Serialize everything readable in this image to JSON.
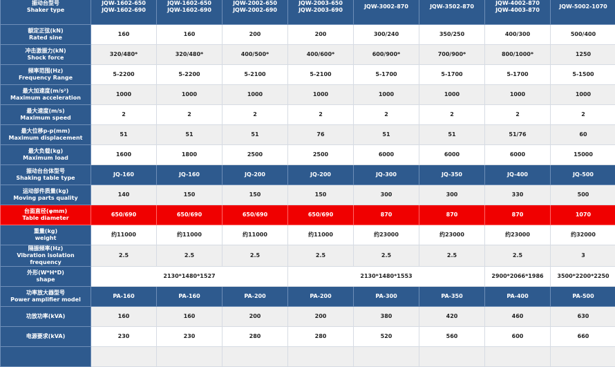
{
  "header": {
    "label_cn": "振动台型号",
    "label_en": "Shaker type",
    "models": [
      [
        "JQW-1602-650",
        "JQW-1602-690"
      ],
      [
        "JQW-1602-650",
        "JQW-1602-690"
      ],
      [
        "JQW-2002-650",
        "JQW-2002-690"
      ],
      [
        "JQW-2003-650",
        "JQW-2003-690"
      ],
      [
        "JQW-3002-870"
      ],
      [
        "JQW-3502-870"
      ],
      [
        "JQW-4002-870",
        "JQW-4003-870"
      ],
      [
        "JQW-5002-1070"
      ]
    ]
  },
  "rows": [
    {
      "cn": "额定正弦(kN)",
      "en": "Rated sine",
      "style": "white",
      "values": [
        "160",
        "160",
        "200",
        "200",
        "300/240",
        "350/250",
        "400/300",
        "500/400"
      ]
    },
    {
      "cn": "冲击激振力(kN)",
      "en": "Shock force",
      "style": "gray",
      "values": [
        "320/480*",
        "320/480*",
        "400/500*",
        "400/600*",
        "600/900*",
        "700/900*",
        "800/1000*",
        "1250"
      ]
    },
    {
      "cn": "频率范围(Hz)",
      "en": "Frequency Range",
      "style": "white",
      "values": [
        "5-2200",
        "5-2200",
        "5-2100",
        "5-2100",
        "5-1700",
        "5-1700",
        "5-1700",
        "5-1500"
      ]
    },
    {
      "cn": "最大加速度(m/s²)",
      "en": "Maximum acceleration",
      "style": "gray",
      "values": [
        "1000",
        "1000",
        "1000",
        "1000",
        "1000",
        "1000",
        "1000",
        "1000"
      ]
    },
    {
      "cn": "最大速度(m/s)",
      "en": "Maximum speed",
      "style": "white",
      "values": [
        "2",
        "2",
        "2",
        "2",
        "2",
        "2",
        "2",
        "2"
      ]
    },
    {
      "cn": "最大位移p-p(mm)",
      "en": "Maximum displacement",
      "style": "gray",
      "values": [
        "51",
        "51",
        "51",
        "76",
        "51",
        "51",
        "51/76",
        "60"
      ]
    },
    {
      "cn": "最大负载(kg)",
      "en": "Maximum load",
      "style": "white",
      "values": [
        "1600",
        "1800",
        "2500",
        "2500",
        "6000",
        "6000",
        "6000",
        "15000"
      ]
    },
    {
      "cn": "振动台台体型号",
      "en": "Shaking table type",
      "style": "blue",
      "values": [
        "JQ-160",
        "JQ-160",
        "JQ-200",
        "JQ-200",
        "JQ-300",
        "JQ-350",
        "JQ-400",
        "JQ-500"
      ]
    },
    {
      "cn": "运动部件质量(kg)",
      "en": "Moving parts quality",
      "style": "gray",
      "values": [
        "140",
        "150",
        "150",
        "150",
        "300",
        "300",
        "330",
        "500"
      ]
    },
    {
      "cn": "台面直径(φmm)",
      "en": "Table diameter",
      "style": "red",
      "values": [
        "650/690",
        "650/690",
        "650/690",
        "650/690",
        "870",
        "870",
        "870",
        "1070"
      ]
    },
    {
      "cn": "重量(kg)",
      "en": "weight",
      "style": "white",
      "values": [
        "约11000",
        "约11000",
        "约11000",
        "约11000",
        "约23000",
        "约23000",
        "约23000",
        "约32000"
      ]
    },
    {
      "cn": "隔振频率(Hz)",
      "en": "Vibration isolation frequency",
      "style": "gray",
      "values": [
        "2.5",
        "2.5",
        "2.5",
        "2.5",
        "2.5",
        "2.5",
        "2.5",
        "3"
      ]
    }
  ],
  "shape": {
    "cn": "外形(W*H*D)",
    "en": "shape",
    "values": [
      "2130*1480*1527",
      "2130*1480*1553",
      "2900*2066*1986",
      "3500*2200*2250"
    ]
  },
  "rows2": [
    {
      "cn": "功率放大器型号",
      "en": "Power amplifier model",
      "style": "blue",
      "values": [
        "PA-160",
        "PA-160",
        "PA-200",
        "PA-200",
        "PA-300",
        "PA-350",
        "PA-400",
        "PA-500"
      ]
    },
    {
      "cn": "功放功率(kVA)",
      "en": "",
      "style": "gray",
      "values": [
        "160",
        "160",
        "200",
        "200",
        "380",
        "420",
        "460",
        "630"
      ]
    },
    {
      "cn": "电源要求(kVA)",
      "en": "",
      "style": "white",
      "values": [
        "230",
        "230",
        "280",
        "280",
        "520",
        "560",
        "600",
        "660"
      ]
    }
  ],
  "colors": {
    "header_blue": "#2e5a8e",
    "highlight_red": "#f00000",
    "row_gray": "#efefef"
  }
}
